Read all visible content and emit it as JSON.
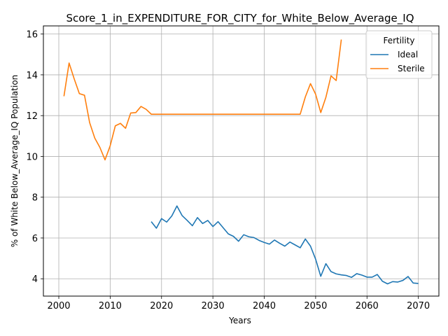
{
  "chart_data": {
    "type": "line",
    "title": "Score_1_in_EXPENDITURE_FOR_CITY_for_White_Below_Average_IQ",
    "xlabel": "Years",
    "ylabel": "% of White Below_Average_IQ Population",
    "xlim": [
      1997,
      2074
    ],
    "ylim": [
      3.15,
      16.4
    ],
    "xticks": [
      2000,
      2010,
      2020,
      2030,
      2040,
      2050,
      2060,
      2070
    ],
    "yticks": [
      4,
      6,
      8,
      10,
      12,
      14,
      16
    ],
    "grid": true,
    "legend": {
      "title": "Fertility",
      "placement": "top-right"
    },
    "series": [
      {
        "name": "Ideal",
        "color": "#1f77b4",
        "x": [
          2018,
          2019,
          2020,
          2021,
          2022,
          2023,
          2024,
          2025,
          2026,
          2027,
          2028,
          2029,
          2030,
          2031,
          2032,
          2033,
          2034,
          2035,
          2036,
          2037,
          2038,
          2039,
          2040,
          2041,
          2042,
          2043,
          2044,
          2045,
          2046,
          2047,
          2048,
          2049,
          2050,
          2051,
          2052,
          2053,
          2054,
          2055,
          2056,
          2057,
          2058,
          2059,
          2060,
          2061,
          2062,
          2063,
          2064,
          2065,
          2066,
          2067,
          2068,
          2069,
          2070
        ],
        "y": [
          6.8,
          6.48,
          6.95,
          6.78,
          7.08,
          7.57,
          7.1,
          6.86,
          6.6,
          7.0,
          6.71,
          6.86,
          6.56,
          6.8,
          6.5,
          6.2,
          6.08,
          5.84,
          6.16,
          6.06,
          6.02,
          5.88,
          5.78,
          5.7,
          5.9,
          5.74,
          5.6,
          5.8,
          5.66,
          5.52,
          5.95,
          5.6,
          4.96,
          4.12,
          4.74,
          4.35,
          4.24,
          4.19,
          4.16,
          4.07,
          4.25,
          4.18,
          4.08,
          4.08,
          4.21,
          3.88,
          3.75,
          3.86,
          3.84,
          3.92,
          4.11,
          3.79,
          3.77
        ]
      },
      {
        "name": "Sterile",
        "color": "#ff7f0e",
        "x": [
          2001,
          2002,
          2003,
          2004,
          2005,
          2006,
          2007,
          2008,
          2009,
          2010,
          2011,
          2012,
          2013,
          2014,
          2015,
          2016,
          2017,
          2018,
          2019,
          2020,
          2021,
          2022,
          2023,
          2024,
          2025,
          2026,
          2027,
          2028,
          2029,
          2030,
          2031,
          2032,
          2033,
          2034,
          2035,
          2036,
          2037,
          2038,
          2039,
          2040,
          2041,
          2042,
          2043,
          2044,
          2045,
          2046,
          2047,
          2048,
          2049,
          2050,
          2051,
          2052,
          2053,
          2054,
          2055
        ],
        "y": [
          12.95,
          14.58,
          13.8,
          13.08,
          13.0,
          11.66,
          10.9,
          10.44,
          9.83,
          10.52,
          11.5,
          11.62,
          11.38,
          12.13,
          12.15,
          12.45,
          12.31,
          12.07,
          12.07,
          12.07,
          12.07,
          12.07,
          12.07,
          12.07,
          12.07,
          12.07,
          12.07,
          12.07,
          12.07,
          12.07,
          12.07,
          12.07,
          12.07,
          12.07,
          12.07,
          12.07,
          12.07,
          12.07,
          12.07,
          12.07,
          12.07,
          12.07,
          12.07,
          12.07,
          12.07,
          12.07,
          12.07,
          12.92,
          13.57,
          13.05,
          12.15,
          12.9,
          13.95,
          13.72,
          15.73
        ]
      }
    ]
  }
}
